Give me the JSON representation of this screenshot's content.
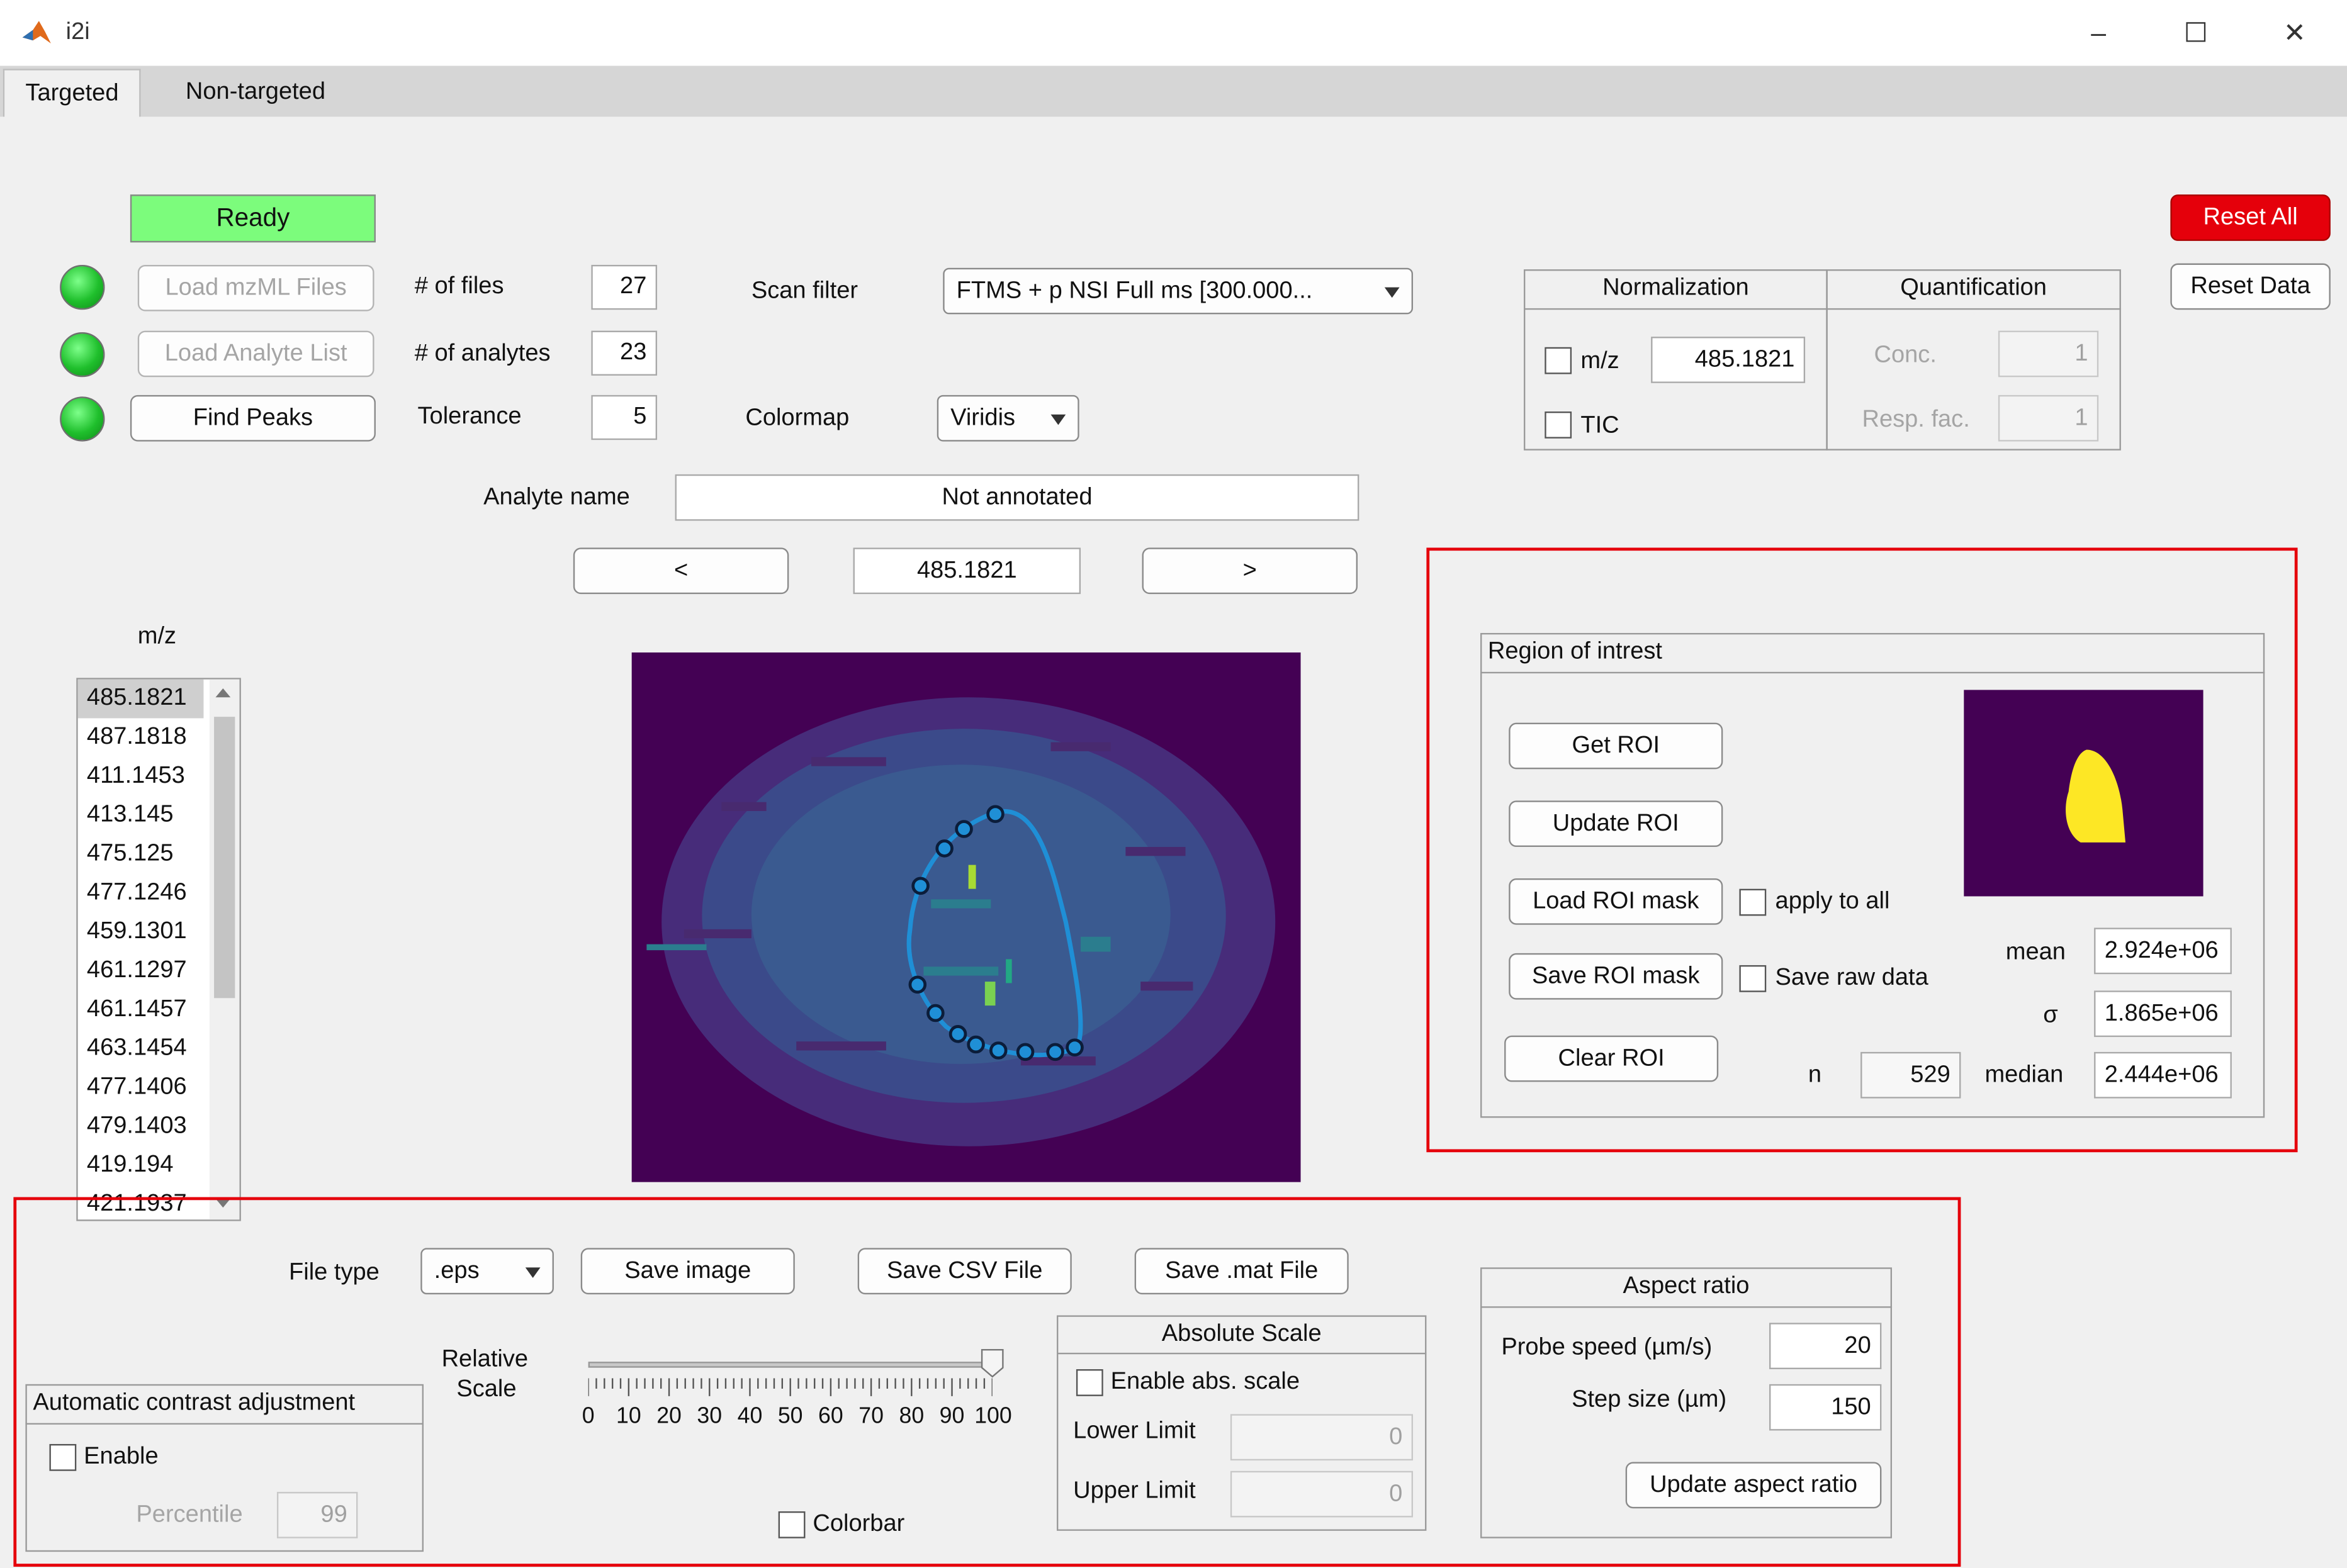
{
  "window": {
    "title": "i2i",
    "controls": [
      "–",
      "☐",
      "✕"
    ]
  },
  "tabs": [
    "Targeted",
    "Non-targeted"
  ],
  "status": "Ready",
  "buttons": {
    "reset_all": "Reset All",
    "reset_data": "Reset Data",
    "load_mzml": "Load mzML Files",
    "load_analyte": "Load Analyte List",
    "find_peaks": "Find Peaks",
    "prev": "<",
    "next": ">"
  },
  "params": {
    "files_label": "# of files",
    "files_value": "27",
    "analytes_label": "# of analytes",
    "analytes_value": "23",
    "tolerance_label": "Tolerance",
    "tolerance_value": "5",
    "scan_filter_label": "Scan filter",
    "scan_filter_value": "FTMS + p NSI Full ms [300.000...",
    "colormap_label": "Colormap",
    "colormap_value": "Viridis",
    "analyte_name_label": "Analyte name",
    "analyte_name_value": "Not annotated",
    "current_mz": "485.1821"
  },
  "normalization": {
    "title": "Normalization",
    "mz_label": "m/z",
    "mz_value": "485.1821",
    "tic_label": "TIC"
  },
  "quantification": {
    "title": "Quantification",
    "conc_label": "Conc.",
    "conc_value": "1",
    "resp_label": "Resp. fac.",
    "resp_value": "1"
  },
  "mz_list": {
    "label": "m/z",
    "items": [
      "485.1821",
      "487.1818",
      "411.1453",
      "413.145",
      "475.125",
      "477.1246",
      "459.1301",
      "461.1297",
      "461.1457",
      "463.1454",
      "477.1406",
      "479.1403",
      "419.194",
      "421.1937"
    ]
  },
  "roi": {
    "title": "Region of intrest",
    "get": "Get ROI",
    "update": "Update ROI",
    "load": "Load ROI mask",
    "save": "Save ROI mask",
    "clear": "Clear ROI",
    "apply_all": "apply to all",
    "save_raw": "Save raw data",
    "mean_label": "mean",
    "mean_value": "2.924e+06",
    "sigma_label": "σ",
    "sigma_value": "1.865e+06",
    "n_label": "n",
    "n_value": "529",
    "median_label": "median",
    "median_value": "2.444e+06"
  },
  "export": {
    "file_type_label": "File type",
    "file_type_value": ".eps",
    "save_image": "Save image",
    "save_csv": "Save CSV File",
    "save_mat": "Save .mat File"
  },
  "contrast": {
    "title": "Automatic contrast adjustment",
    "enable": "Enable",
    "percentile_label": "Percentile",
    "percentile_value": "99"
  },
  "relative_scale": {
    "label_line1": "Relative",
    "label_line2": "Scale",
    "value": 100,
    "ticks": [
      "0",
      "10",
      "20",
      "30",
      "40",
      "50",
      "60",
      "70",
      "80",
      "90",
      "100"
    ]
  },
  "colorbar_label": "Colorbar",
  "absolute_scale": {
    "title": "Absolute Scale",
    "enable": "Enable abs. scale",
    "lower_label": "Lower Limit",
    "lower_value": "0",
    "upper_label": "Upper Limit",
    "upper_value": "0"
  },
  "aspect_ratio": {
    "title": "Aspect ratio",
    "probe_label": "Probe speed (µm/s)",
    "probe_value": "20",
    "step_label": "Step size (µm)",
    "step_value": "150",
    "update": "Update aspect ratio"
  },
  "colors": {
    "accent_red": "#e5000b",
    "ready_green": "#7cfc7c",
    "viridis_dark": "#440154",
    "viridis_yellow": "#fde725"
  }
}
